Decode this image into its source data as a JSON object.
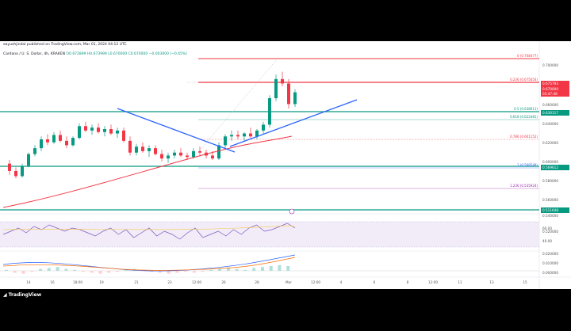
{
  "header": {
    "publish_line": "aayushjindal published on TradingView.com, Mar 01, 2024 04:12 UTC",
    "symbol_line_prefix": "Cardano / U. S. Dollar, 4h, KRAKEN",
    "ohlc": "O0.672899  H0.673999  L0.670000  C0.670000  −0.003000 (−0.45%)"
  },
  "price_axis": {
    "labels": [
      "0.700000",
      "0.680000",
      "0.660000",
      "0.640000",
      "0.620000",
      "0.600000",
      "0.580000",
      "0.560000",
      "0.540000",
      "0.520000"
    ],
    "tags": [
      {
        "text": "0.675793",
        "color": "#f23645"
      },
      {
        "text": "0.670000",
        "color": "#f23645"
      },
      {
        "text": "03:47:48",
        "color": "#f23645"
      },
      {
        "text": "0.630117",
        "color": "#089981"
      },
      {
        "text": "0.569612",
        "color": "#089981"
      },
      {
        "text": "0.511648",
        "color": "#089981"
      }
    ],
    "osc_labels": [
      "60.00",
      "40.00",
      "0.020000",
      "0.010000",
      "0.000000"
    ]
  },
  "fib_levels": [
    {
      "text": "0 (0.708477)",
      "color": "#f23645"
    },
    {
      "text": "0.236 (0.675654)",
      "color": "#f23645"
    },
    {
      "text": "0.5 (0.638911)",
      "color": "#089981"
    },
    {
      "text": "0.618 (0.622481)",
      "color": "#089981"
    },
    {
      "text": "0.786 (0.601152)",
      "color": "#f23645"
    },
    {
      "text": "1 (0.568549)",
      "color": "#2962ff"
    },
    {
      "text": "1.236 (0.535924)",
      "color": "#9c27b0"
    }
  ],
  "time_axis": [
    "14",
    "16",
    "18:00",
    "19",
    "21",
    "23",
    "12:00",
    "26",
    "28",
    "Mar",
    "12:00",
    "4",
    "6",
    "8",
    "12:00",
    "11",
    "13",
    "15"
  ],
  "brand": {
    "name": "TradingView",
    "logo_icon": "tradingview-logo-icon"
  },
  "colors": {
    "up": "#089981",
    "down": "#f23645",
    "trend": "#2962ff",
    "ema": "#f23645",
    "rsi": "#7e57c2"
  },
  "chart_data": {
    "type": "candlestick",
    "symbol": "ADAUSD",
    "timeframe": "4h",
    "ylim": [
      0.51,
      0.72
    ],
    "candles": [
      [
        0.575,
        0.58,
        0.56,
        0.565
      ],
      [
        0.565,
        0.57,
        0.555,
        0.558
      ],
      [
        0.558,
        0.575,
        0.556,
        0.572
      ],
      [
        0.572,
        0.59,
        0.57,
        0.588
      ],
      [
        0.588,
        0.6,
        0.585,
        0.596
      ],
      [
        0.596,
        0.612,
        0.592,
        0.608
      ],
      [
        0.608,
        0.615,
        0.6,
        0.604
      ],
      [
        0.604,
        0.618,
        0.602,
        0.614
      ],
      [
        0.614,
        0.62,
        0.604,
        0.606
      ],
      [
        0.606,
        0.612,
        0.596,
        0.6
      ],
      [
        0.6,
        0.612,
        0.598,
        0.61
      ],
      [
        0.61,
        0.63,
        0.608,
        0.626
      ],
      [
        0.626,
        0.632,
        0.618,
        0.62
      ],
      [
        0.62,
        0.628,
        0.614,
        0.624
      ],
      [
        0.624,
        0.63,
        0.616,
        0.618
      ],
      [
        0.618,
        0.626,
        0.612,
        0.622
      ],
      [
        0.622,
        0.628,
        0.614,
        0.616
      ],
      [
        0.616,
        0.624,
        0.61,
        0.62
      ],
      [
        0.62,
        0.624,
        0.604,
        0.606
      ],
      [
        0.606,
        0.612,
        0.586,
        0.59
      ],
      [
        0.59,
        0.602,
        0.586,
        0.598
      ],
      [
        0.598,
        0.604,
        0.59,
        0.592
      ],
      [
        0.592,
        0.6,
        0.584,
        0.596
      ],
      [
        0.596,
        0.6,
        0.586,
        0.588
      ],
      [
        0.588,
        0.594,
        0.578,
        0.582
      ],
      [
        0.582,
        0.59,
        0.576,
        0.586
      ],
      [
        0.586,
        0.594,
        0.582,
        0.59
      ],
      [
        0.59,
        0.596,
        0.584,
        0.586
      ],
      [
        0.586,
        0.59,
        0.58,
        0.584
      ],
      [
        0.584,
        0.596,
        0.582,
        0.592
      ],
      [
        0.592,
        0.598,
        0.586,
        0.59
      ],
      [
        0.59,
        0.594,
        0.582,
        0.586
      ],
      [
        0.586,
        0.592,
        0.58,
        0.582
      ],
      [
        0.582,
        0.604,
        0.58,
        0.6
      ],
      [
        0.6,
        0.615,
        0.596,
        0.612
      ],
      [
        0.612,
        0.62,
        0.606,
        0.614
      ],
      [
        0.614,
        0.62,
        0.608,
        0.612
      ],
      [
        0.612,
        0.618,
        0.606,
        0.616
      ],
      [
        0.616,
        0.624,
        0.61,
        0.612
      ],
      [
        0.612,
        0.622,
        0.608,
        0.62
      ],
      [
        0.62,
        0.632,
        0.616,
        0.628
      ],
      [
        0.628,
        0.668,
        0.624,
        0.664
      ],
      [
        0.664,
        0.696,
        0.66,
        0.69
      ],
      [
        0.69,
        0.7,
        0.68,
        0.684
      ],
      [
        0.684,
        0.69,
        0.65,
        0.656
      ],
      [
        0.656,
        0.676,
        0.652,
        0.672
      ]
    ]
  }
}
